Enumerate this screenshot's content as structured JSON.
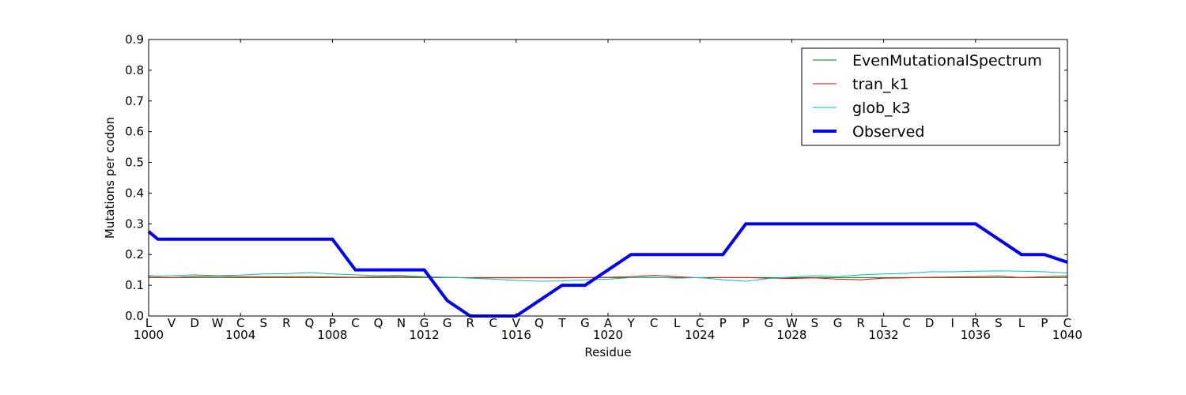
{
  "chart_data": {
    "type": "line",
    "xlabel": "Residue",
    "ylabel": "Mutations per codon",
    "xlim": [
      1000,
      1040
    ],
    "ylim": [
      0.0,
      0.9
    ],
    "xticks": [
      1000,
      1004,
      1008,
      1012,
      1016,
      1020,
      1024,
      1028,
      1032,
      1036,
      1040
    ],
    "xtick_labels": [
      "1000",
      "1004",
      "1008",
      "1012",
      "1016",
      "1020",
      "1024",
      "1028",
      "1032",
      "1036",
      "1040"
    ],
    "yticks": [
      0.0,
      0.1,
      0.2,
      0.3,
      0.4,
      0.5,
      0.6,
      0.7,
      0.8,
      0.9
    ],
    "ytick_labels": [
      "0.0",
      "0.1",
      "0.2",
      "0.3",
      "0.4",
      "0.5",
      "0.6",
      "0.7",
      "0.8",
      "0.9"
    ],
    "residues": [
      "L",
      "V",
      "D",
      "W",
      "C",
      "S",
      "R",
      "Q",
      "P",
      "C",
      "Q",
      "N",
      "G",
      "G",
      "R",
      "C",
      "V",
      "Q",
      "T",
      "G",
      "A",
      "Y",
      "C",
      "L",
      "C",
      "P",
      "P",
      "G",
      "W",
      "S",
      "G",
      "R",
      "L",
      "C",
      "D",
      "I",
      "R",
      "S",
      "L",
      "P",
      "C"
    ],
    "x": [
      1000,
      1000.4,
      1001,
      1002,
      1003,
      1004,
      1005,
      1006,
      1007,
      1008,
      1009,
      1010,
      1011,
      1012,
      1013,
      1014,
      1015,
      1016,
      1017,
      1018,
      1019,
      1020,
      1021,
      1022,
      1023,
      1024,
      1025,
      1026,
      1027,
      1028,
      1029,
      1030,
      1031,
      1032,
      1033,
      1034,
      1035,
      1036,
      1037,
      1038,
      1039,
      1040
    ],
    "legend_position": "upper right",
    "grid": false,
    "series": [
      {
        "name": "EvenMutationalSpectrum",
        "color": "#008000",
        "linewidth": 1,
        "y": [
          0.125,
          0.125,
          0.125,
          0.125,
          0.125,
          0.125,
          0.125,
          0.125,
          0.125,
          0.125,
          0.125,
          0.125,
          0.125,
          0.125,
          0.125,
          0.125,
          0.125,
          0.125,
          0.125,
          0.125,
          0.125,
          0.125,
          0.125,
          0.125,
          0.125,
          0.125,
          0.125,
          0.125,
          0.125,
          0.125,
          0.125,
          0.125,
          0.125,
          0.125,
          0.125,
          0.125,
          0.125,
          0.125,
          0.125,
          0.125,
          0.125,
          0.125
        ]
      },
      {
        "name": "tran_k1",
        "color": "#ff0000",
        "linewidth": 1,
        "y": [
          0.127,
          0.126,
          0.125,
          0.129,
          0.13,
          0.128,
          0.128,
          0.128,
          0.128,
          0.127,
          0.126,
          0.128,
          0.129,
          0.127,
          0.126,
          0.124,
          0.124,
          0.124,
          0.124,
          0.124,
          0.125,
          0.126,
          0.128,
          0.132,
          0.128,
          0.124,
          0.125,
          0.125,
          0.123,
          0.122,
          0.124,
          0.12,
          0.118,
          0.123,
          0.124,
          0.126,
          0.127,
          0.128,
          0.13,
          0.125,
          0.128,
          0.13
        ]
      },
      {
        "name": "glob_k3",
        "color": "#00bfbf",
        "linewidth": 1,
        "y": [
          0.132,
          0.13,
          0.131,
          0.134,
          0.131,
          0.133,
          0.137,
          0.138,
          0.141,
          0.137,
          0.134,
          0.131,
          0.132,
          0.128,
          0.126,
          0.123,
          0.12,
          0.116,
          0.113,
          0.114,
          0.118,
          0.12,
          0.125,
          0.126,
          0.123,
          0.125,
          0.118,
          0.113,
          0.122,
          0.127,
          0.131,
          0.128,
          0.134,
          0.137,
          0.139,
          0.144,
          0.144,
          0.146,
          0.147,
          0.146,
          0.144,
          0.14
        ]
      },
      {
        "name": "Observed",
        "color": "#0000ff",
        "linewidth": 4,
        "y": [
          0.275,
          0.25,
          0.25,
          0.25,
          0.25,
          0.25,
          0.25,
          0.25,
          0.25,
          0.25,
          0.15,
          0.15,
          0.15,
          0.15,
          0.05,
          0.0,
          0.0,
          0.0,
          0.05,
          0.1,
          0.1,
          0.15,
          0.2,
          0.2,
          0.2,
          0.2,
          0.2,
          0.3,
          0.3,
          0.3,
          0.3,
          0.3,
          0.3,
          0.3,
          0.3,
          0.3,
          0.3,
          0.3,
          0.25,
          0.2,
          0.2,
          0.175
        ]
      }
    ]
  }
}
